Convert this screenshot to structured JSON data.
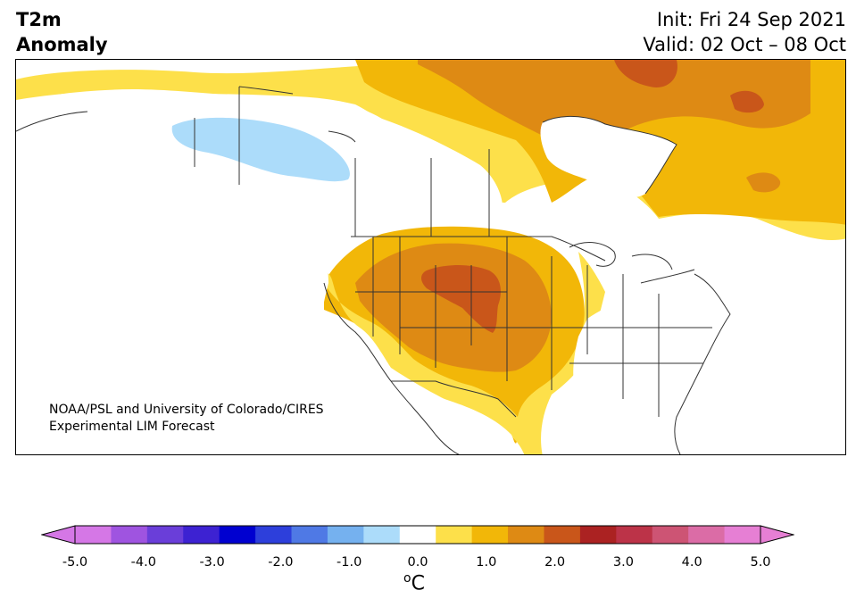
{
  "title": {
    "line1": "T2m",
    "line2": "Anomaly"
  },
  "init": "Init: Fri 24 Sep 2021",
  "valid": "Valid: 02 Oct – 08 Oct",
  "credit": {
    "line1": "NOAA/PSL and University of Colorado/CIRES",
    "line2": "Experimental LIM Forecast"
  },
  "colorbar": {
    "ticks": [
      "-5.0",
      "-4.0",
      "-3.0",
      "-2.0",
      "-1.0",
      "0.0",
      "1.0",
      "2.0",
      "3.0",
      "4.0",
      "5.0"
    ],
    "unit_sup": "o",
    "unit": "C",
    "levels": [
      -5.0,
      -4.5,
      -4.0,
      -3.5,
      -3.0,
      -2.5,
      -2.0,
      -1.5,
      -1.0,
      -0.5,
      0.5,
      1.0,
      1.5,
      2.0,
      2.5,
      3.0,
      3.5,
      4.0,
      4.5,
      5.0
    ],
    "colors": [
      "#d577e6",
      "#9f54e0",
      "#6a3ed9",
      "#3d22d2",
      "#0000d0",
      "#2d3fdb",
      "#4f79e5",
      "#75b1ef",
      "#acdcfa",
      "#ffffff",
      "#fde04a",
      "#f2b708",
      "#de8a14",
      "#c9561a",
      "#ab2222",
      "#bc3348",
      "#cd5474",
      "#db6ca6",
      "#e67fd4"
    ],
    "under_color": "#d577e6",
    "over_color": "#e67fd4"
  },
  "colors": {
    "light_blue": "#acdcfa",
    "yellow": "#fde04a",
    "gold": "#f2b708",
    "orange": "#de8a14",
    "dark_orange": "#c9561a"
  }
}
